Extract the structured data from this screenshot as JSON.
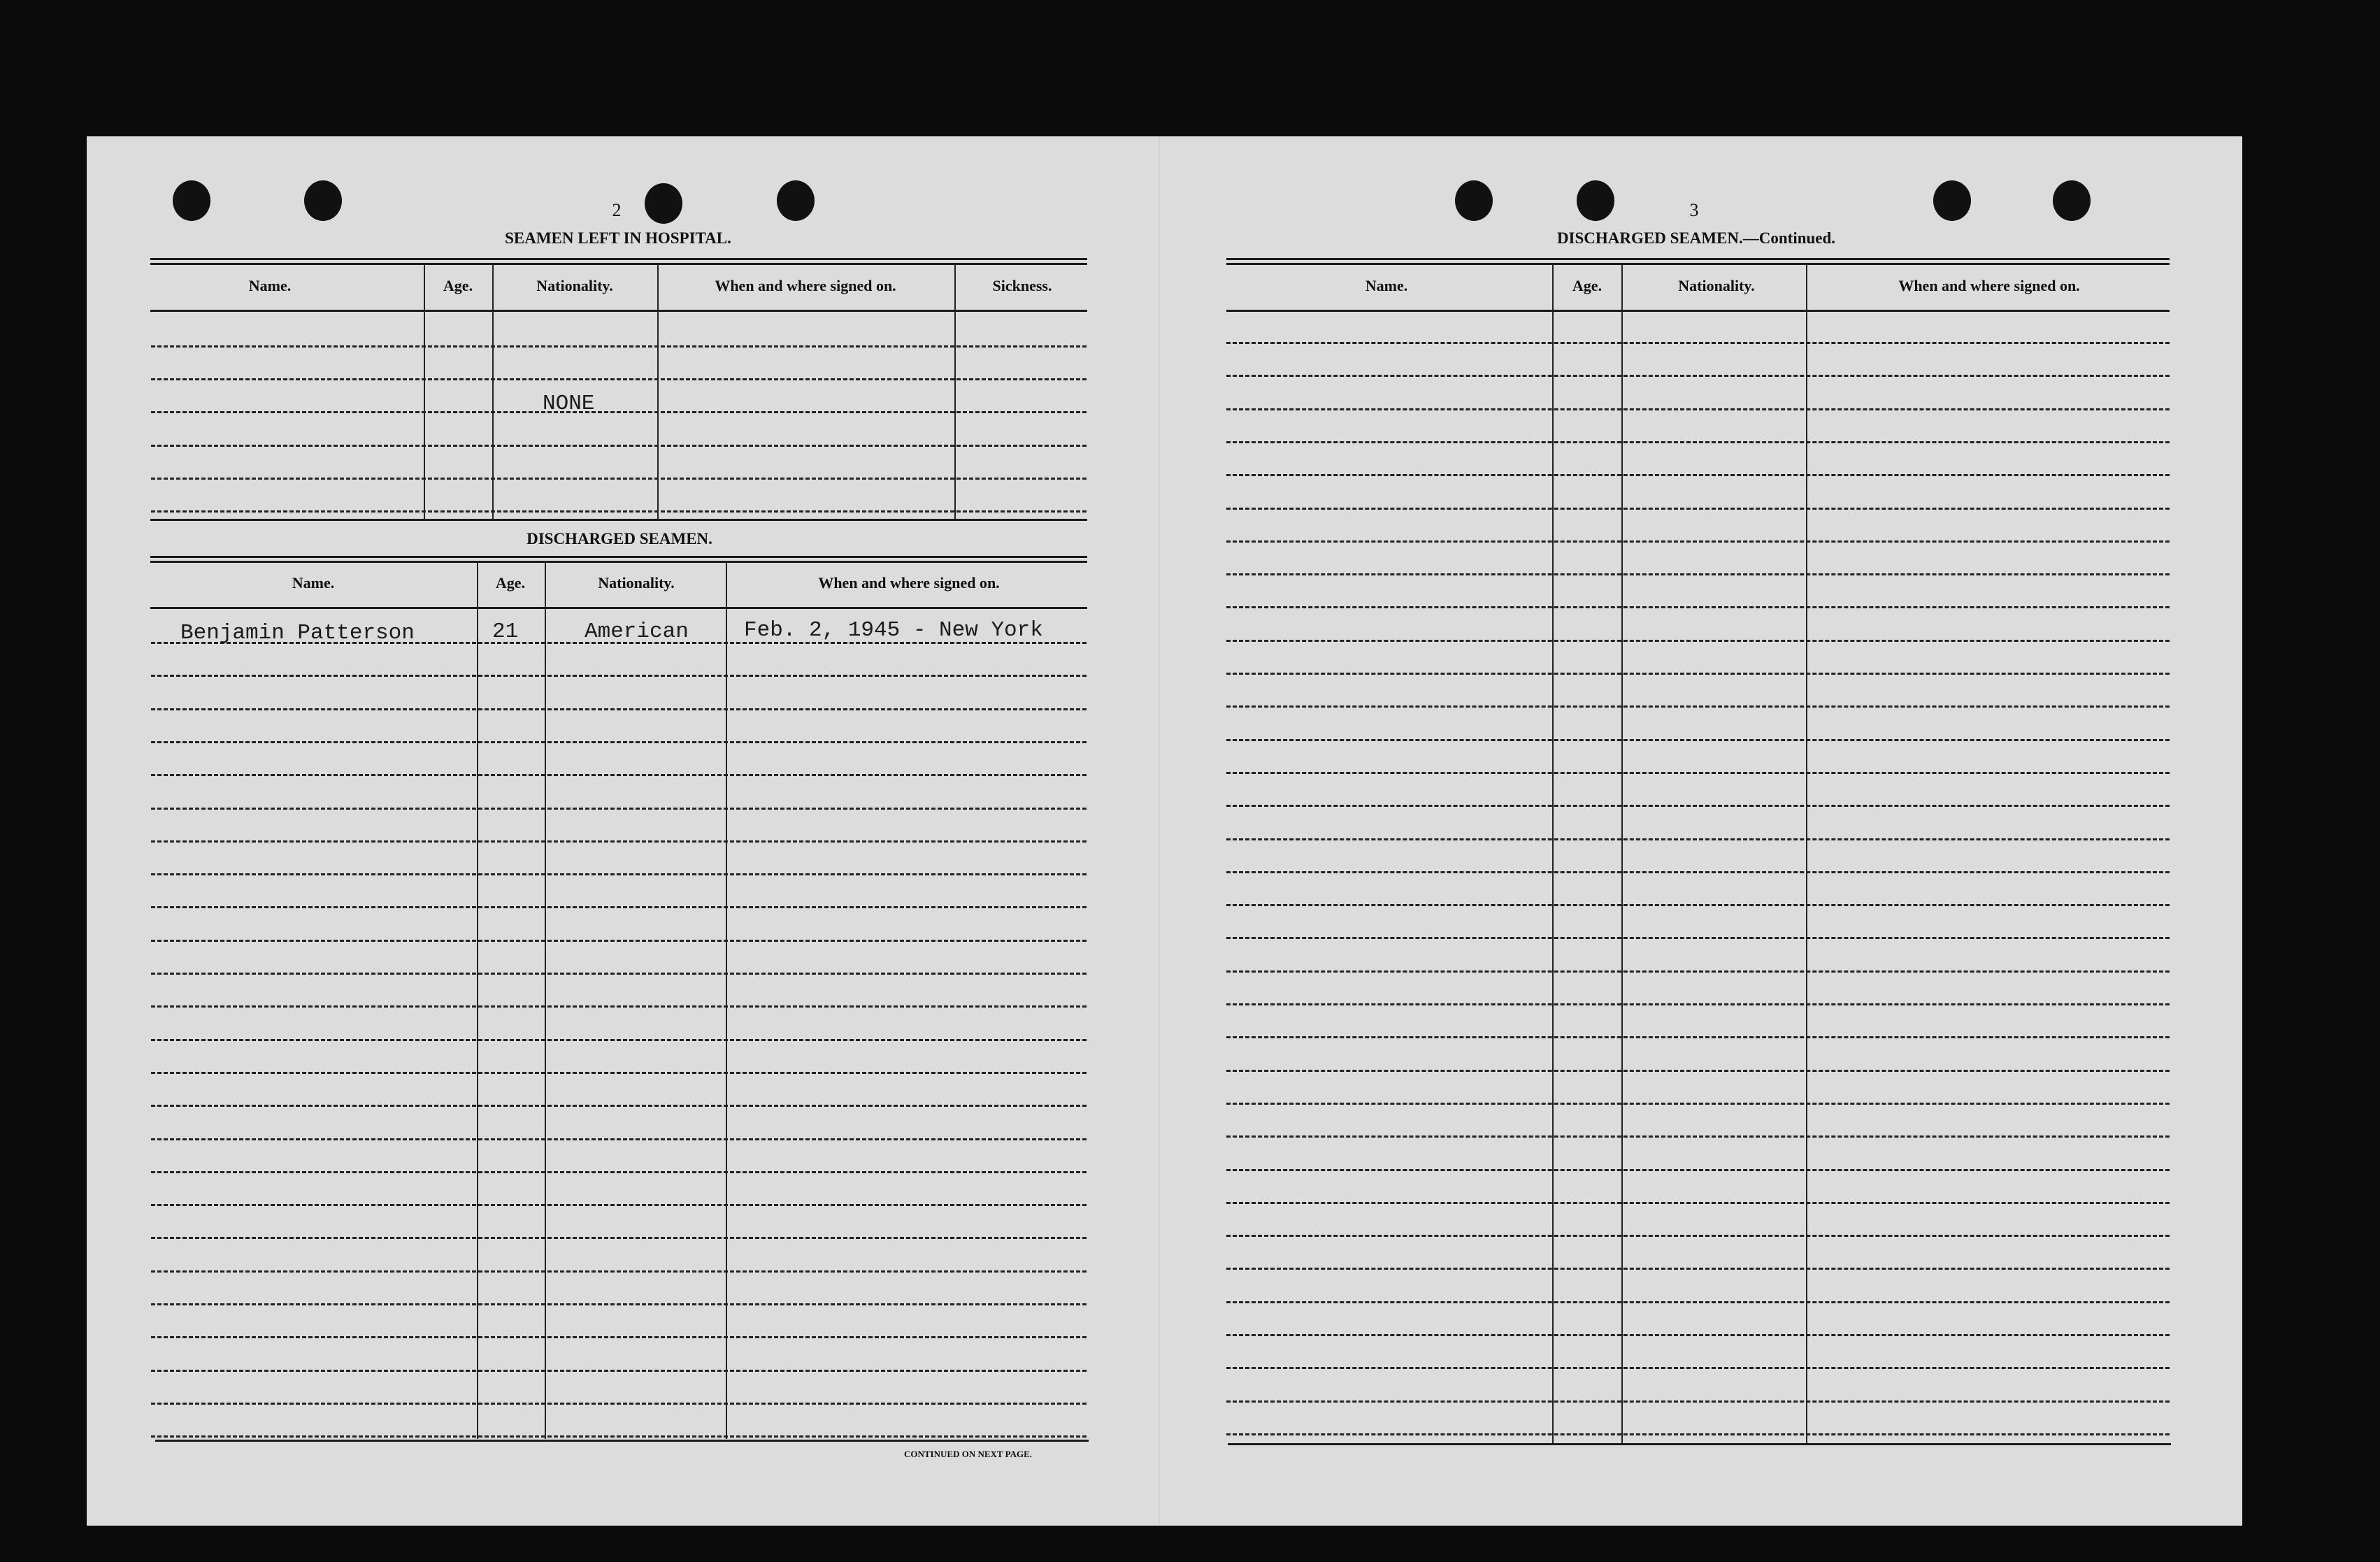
{
  "left_page": {
    "page_number": "2",
    "hospital": {
      "title": "SEAMEN LEFT IN HOSPITAL.",
      "columns": [
        "Name.",
        "Age.",
        "Nationality.",
        "When and where signed on.",
        "Sickness."
      ],
      "entry": "NONE"
    },
    "discharged": {
      "title": "DISCHARGED SEAMEN.",
      "columns": [
        "Name.",
        "Age.",
        "Nationality.",
        "When and where signed on."
      ],
      "rows": [
        {
          "name": "Benjamin Patterson",
          "age": "21",
          "nationality": "American",
          "signed_on": "Feb. 2, 1945 - New York"
        }
      ]
    },
    "footer": "CONTINUED ON NEXT PAGE."
  },
  "right_page": {
    "page_number": "3",
    "title": "DISCHARGED SEAMEN.—Continued.",
    "columns": [
      "Name.",
      "Age.",
      "Nationality.",
      "When and where signed on."
    ]
  }
}
